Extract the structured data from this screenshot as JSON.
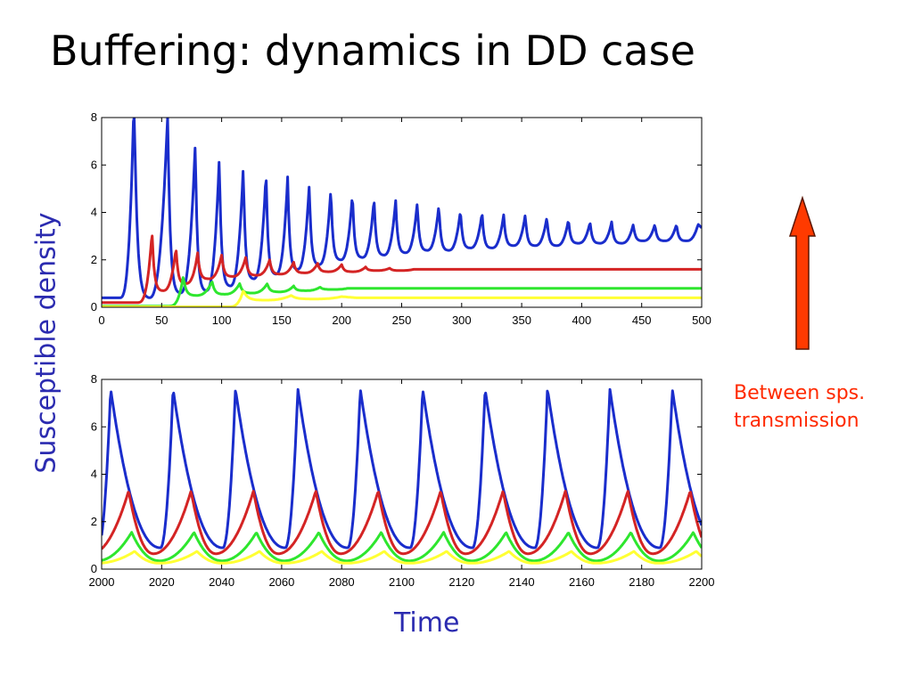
{
  "slide": {
    "title": "Buffering: dynamics in DD case",
    "ylabel": "Susceptible density",
    "xlabel": "Time",
    "annotation_line1": "Between sps.",
    "annotation_line2": "transmission"
  },
  "colors": {
    "blue": "#1a2dcc",
    "red": "#d42424",
    "green": "#2ee62e",
    "yellow": "#ffff33",
    "arrow_fill": "#ff3a00",
    "text_blue": "#2b2bb0",
    "annotation": "#ff2a00"
  },
  "arrow": {
    "direction": "up",
    "icon": "up-arrow-icon"
  },
  "chart_data": [
    {
      "type": "line",
      "xlim": [
        0,
        500
      ],
      "ylim": [
        0,
        8
      ],
      "xticks": [
        0,
        50,
        100,
        150,
        200,
        250,
        300,
        350,
        400,
        450,
        500
      ],
      "yticks": [
        0,
        2,
        4,
        6,
        8
      ],
      "series": [
        {
          "color": "blue",
          "model": "damped_peaks",
          "base": 0.4,
          "peaks_t": [
            27,
            55,
            78,
            98,
            118,
            137,
            155,
            173,
            191,
            209,
            227,
            245,
            263,
            281,
            299,
            317,
            335,
            353,
            371,
            389,
            407,
            425,
            443,
            461,
            479,
            497
          ],
          "peaks_h": [
            9,
            8.2,
            6.9,
            6.3,
            5.9,
            5.7,
            5.5,
            5.2,
            5.0,
            4.8,
            4.6,
            4.5,
            4.4,
            4.3,
            4.1,
            4.0,
            3.9,
            3.9,
            3.8,
            3.7,
            3.6,
            3.6,
            3.5,
            3.5,
            3.5,
            3.5
          ],
          "troughs": [
            0.3,
            0.4,
            0.6,
            0.7,
            0.9,
            1.2,
            1.4,
            1.6,
            1.8,
            2.0,
            2.1,
            2.2,
            2.3,
            2.4,
            2.4,
            2.5,
            2.5,
            2.6,
            2.6,
            2.6,
            2.7,
            2.7,
            2.7,
            2.8,
            2.8,
            2.8
          ],
          "end": 2.9
        },
        {
          "color": "red",
          "model": "damped_peaks",
          "base": 0.2,
          "peaks_t": [
            42,
            62,
            80,
            100,
            120,
            140,
            160,
            180,
            200,
            220,
            240,
            260,
            280
          ],
          "peaks_h": [
            3.2,
            2.5,
            2.3,
            2.2,
            2.1,
            2.0,
            1.9,
            1.85,
            1.8,
            1.7,
            1.65,
            1.6,
            1.6
          ],
          "troughs": [
            0.2,
            0.7,
            1.0,
            1.2,
            1.3,
            1.35,
            1.4,
            1.45,
            1.5,
            1.5,
            1.55,
            1.55,
            1.6
          ],
          "end": 1.6
        },
        {
          "color": "green",
          "model": "damped_peaks",
          "base": 0.05,
          "peaks_t": [
            68,
            92,
            115,
            138,
            160,
            182,
            205
          ],
          "peaks_h": [
            1.3,
            1.1,
            1.0,
            1.0,
            0.9,
            0.85,
            0.8
          ],
          "troughs": [
            0.05,
            0.5,
            0.55,
            0.6,
            0.65,
            0.7,
            0.75
          ],
          "end": 0.8
        },
        {
          "color": "yellow",
          "model": "damped_peaks",
          "base": 0.02,
          "peaks_t": [
            118,
            158,
            200
          ],
          "peaks_h": [
            0.7,
            0.5,
            0.45
          ],
          "troughs": [
            0.02,
            0.3,
            0.35
          ],
          "end": 0.4
        }
      ]
    },
    {
      "type": "line",
      "xlim": [
        2000,
        2200
      ],
      "ylim": [
        0,
        8
      ],
      "xticks": [
        2000,
        2020,
        2040,
        2060,
        2080,
        2100,
        2120,
        2140,
        2160,
        2180,
        2200
      ],
      "yticks": [
        0,
        2,
        4,
        6,
        8
      ],
      "series": [
        {
          "color": "blue",
          "model": "relaxation",
          "period": 20.8,
          "phase": 2003,
          "min": 0.9,
          "max": 7.6,
          "rise_frac": 0.2
        },
        {
          "color": "red",
          "model": "relaxation",
          "period": 20.8,
          "phase": 2009,
          "min": 0.65,
          "max": 3.3,
          "rise_frac": 0.6
        },
        {
          "color": "green",
          "model": "relaxation",
          "period": 20.8,
          "phase": 2010,
          "min": 0.35,
          "max": 1.55,
          "rise_frac": 0.55
        },
        {
          "color": "yellow",
          "model": "relaxation",
          "period": 20.8,
          "phase": 2011,
          "min": 0.25,
          "max": 0.75,
          "rise_frac": 0.6
        }
      ]
    }
  ]
}
